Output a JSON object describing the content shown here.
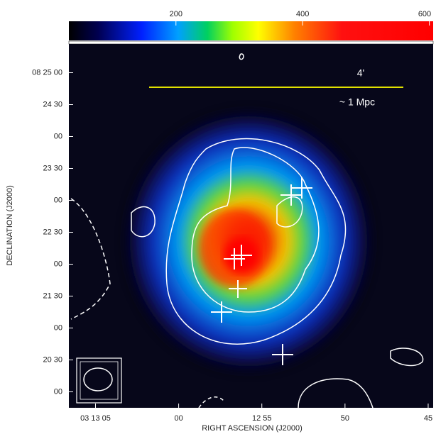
{
  "chart_data": {
    "type": "image",
    "xlabel": "RIGHT ASCENSION (J2000)",
    "ylabel": "DECLINATION (J2000)",
    "annotations": [
      "4'",
      "~ 1 Mpc",
      "0"
    ],
    "xlim": [
      11586.6,
      11564.7
    ],
    "xticks": [
      {
        "value": 11585,
        "label": "03 13 05"
      },
      {
        "value": 11580,
        "label": "00"
      },
      {
        "value": 11575,
        "label": "12 55"
      },
      {
        "value": 11570,
        "label": "50"
      },
      {
        "value": 11565,
        "label": "45"
      }
    ],
    "ylim": [
      29985,
      30327
    ],
    "yticks": [
      {
        "value": 30300,
        "label": "08 25 00"
      },
      {
        "value": 30270,
        "label": "24 30"
      },
      {
        "value": 30240,
        "label": "00"
      },
      {
        "value": 30210,
        "label": "23 30"
      },
      {
        "value": 30180,
        "label": "00"
      },
      {
        "value": 30150,
        "label": "22 30"
      },
      {
        "value": 30120,
        "label": "00"
      },
      {
        "value": 30090,
        "label": "21 30"
      },
      {
        "value": 30060,
        "label": "00"
      },
      {
        "value": 30030,
        "label": "20 30"
      },
      {
        "value": 30000,
        "label": "00"
      }
    ],
    "clim": [
      31,
      606
    ],
    "cticks": [
      200,
      400,
      600
    ]
  }
}
